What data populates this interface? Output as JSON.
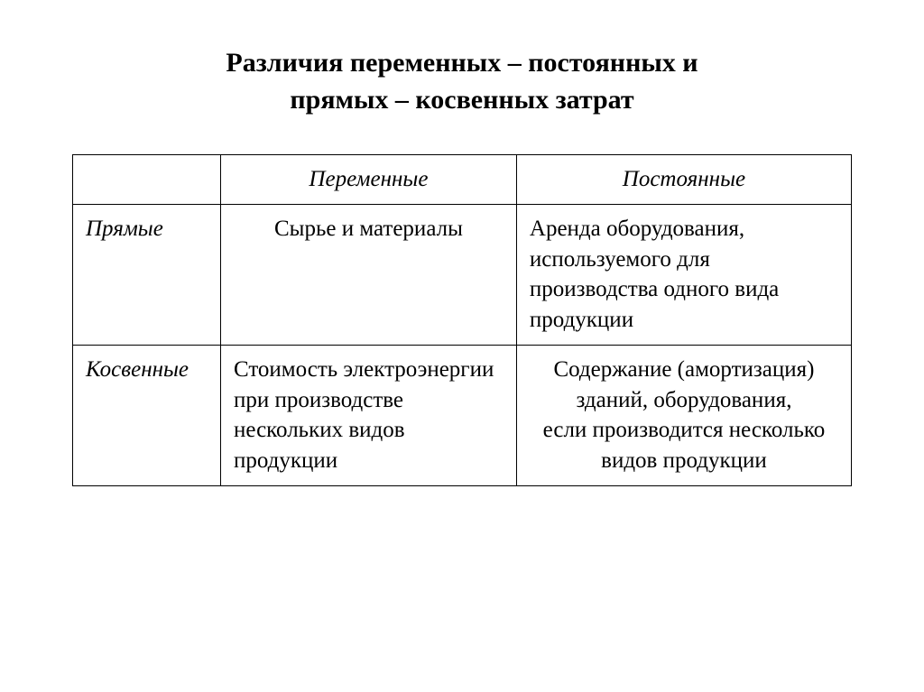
{
  "title": {
    "line1": "Различия переменных – постоянных и",
    "line2": "прямых – косвенных затрат",
    "fontsize": 30,
    "fontweight": "bold",
    "align": "center"
  },
  "table": {
    "border_color": "#000000",
    "background_color": "#ffffff",
    "text_color": "#000000",
    "cell_fontsize": 25,
    "col_widths_pct": [
      19,
      38,
      43
    ],
    "columns": {
      "blank": "",
      "variable": "Переменные",
      "constant": "Постоянные"
    },
    "rows": {
      "direct": {
        "label": "Прямые",
        "variable": "Сырье и материалы",
        "constant": "Аренда оборудования, используемого для производства одного вида продукции",
        "variable_align": "center",
        "constant_align": "left"
      },
      "indirect": {
        "label": "Косвенные",
        "variable": "Стоимость электроэнергии при производстве нескольких видов продукции",
        "constant": "Содержание (амортизация) зданий, оборудования,\nесли производится несколько видов продукции",
        "variable_align": "left",
        "constant_align": "center"
      }
    }
  }
}
